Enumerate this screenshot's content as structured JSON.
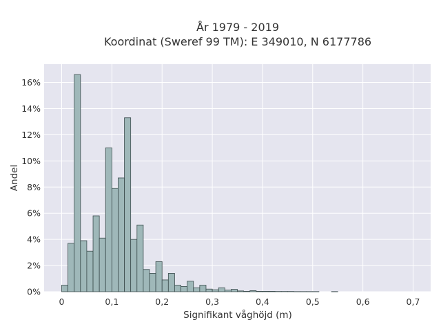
{
  "chart_data": {
    "type": "bar",
    "title_line1": "År 1979 - 2019",
    "title_line2": "Koordinat (Sweref 99 TM): E 349010, N 6177786",
    "xlabel": "Signifikant våghöjd (m)",
    "ylabel": "Andel",
    "xlim": [
      -0.035,
      0.735
    ],
    "ylim": [
      0,
      0.174
    ],
    "x_ticks": [
      0,
      0.1,
      0.2,
      0.3,
      0.4,
      0.5,
      0.6,
      0.7
    ],
    "x_tick_labels": [
      "0",
      "0,1",
      "0,2",
      "0,3",
      "0,4",
      "0,5",
      "0,6",
      "0,7"
    ],
    "y_ticks": [
      0,
      0.02,
      0.04,
      0.06,
      0.08,
      0.1,
      0.12,
      0.14,
      0.16
    ],
    "y_tick_labels": [
      "0%",
      "2%",
      "4%",
      "6%",
      "8%",
      "10%",
      "12%",
      "14%",
      "16%"
    ],
    "bin_width": 0.0125,
    "bin_start": 0,
    "values": [
      0.005,
      0.037,
      0.166,
      0.039,
      0.031,
      0.058,
      0.041,
      0.11,
      0.079,
      0.087,
      0.133,
      0.04,
      0.051,
      0.017,
      0.014,
      0.023,
      0.009,
      0.014,
      0.005,
      0.004,
      0.008,
      0.003,
      0.005,
      0.002,
      0.0015,
      0.003,
      0.0012,
      0.0018,
      0.0006,
      0.0003,
      0.0008,
      0.0003,
      0.0003,
      0.0003,
      0.0002,
      0.0002,
      0.0002,
      0.0001,
      0.0001,
      0.0001,
      0.0001,
      0,
      0,
      0.0001,
      0,
      0,
      0,
      0,
      0,
      0
    ],
    "grid": true,
    "colors": {
      "bar_fill": "#9fb8b9",
      "bar_stroke": "#3a4b4c",
      "plot_bg": "#e5e5ef",
      "grid": "#ffffff"
    }
  }
}
